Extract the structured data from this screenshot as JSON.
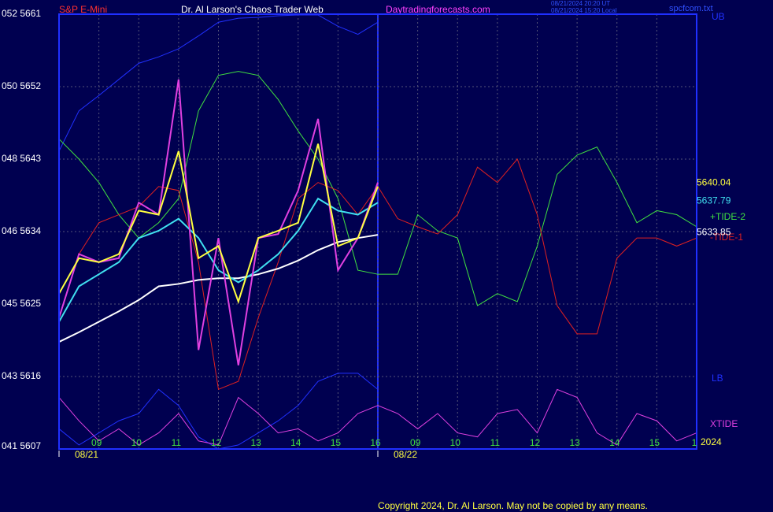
{
  "chart_data": {
    "type": "line",
    "title": "Dr. Al Larson's Chaos Trader Web",
    "instrument": "S&P E-Mini",
    "website": "Daytradingforecasts.com",
    "timestamps": [
      "08/21/2024 20:20 UT",
      "08/21/2024 15:20 Local"
    ],
    "file": "spcfcom.txt",
    "copyright": "Copyright 2024, Dr. Al Larson. May not be copied by any means.",
    "year": "2024",
    "dates": [
      "08/21",
      "08/22"
    ],
    "xlim": [
      0,
      16
    ],
    "xticks": [
      {
        "value": 1,
        "label": "09"
      },
      {
        "value": 2,
        "label": "10"
      },
      {
        "value": 3,
        "label": "11"
      },
      {
        "value": 4,
        "label": "12"
      },
      {
        "value": 5,
        "label": "13"
      },
      {
        "value": 6,
        "label": "14"
      },
      {
        "value": 7,
        "label": "15"
      },
      {
        "value": 8,
        "label": "16"
      },
      {
        "value": 9,
        "label": "09"
      },
      {
        "value": 10,
        "label": "10"
      },
      {
        "value": 11,
        "label": "11"
      },
      {
        "value": 12,
        "label": "12"
      },
      {
        "value": 13,
        "label": "13"
      },
      {
        "value": 14,
        "label": "14"
      },
      {
        "value": 15,
        "label": "15"
      },
      {
        "value": 16,
        "label": "1"
      }
    ],
    "ylim": [
      5607,
      5661
    ],
    "yticks": [
      {
        "value": 5661,
        "label": "052 5661"
      },
      {
        "value": 5652,
        "label": "050 5652"
      },
      {
        "value": 5643,
        "label": "048 5643"
      },
      {
        "value": 5634,
        "label": "046 5634"
      },
      {
        "value": 5625,
        "label": "045 5625"
      },
      {
        "value": 5616,
        "label": "043 5616"
      },
      {
        "value": 5607,
        "label": "041 5607"
      }
    ],
    "grid": true,
    "x": [
      0,
      0.5,
      1,
      1.5,
      2,
      2.5,
      3,
      3.5,
      4,
      4.5,
      5,
      5.5,
      6,
      6.5,
      7,
      7.5,
      8,
      8.5,
      9,
      9.5,
      10,
      10.5,
      11,
      11.5,
      12,
      12.5,
      13,
      13.5,
      14,
      14.5,
      15,
      15.5,
      16
    ],
    "series": [
      {
        "name": "UB",
        "color": "#2030ff",
        "values": [
          5644.0,
          5649.0,
          5650.9,
          5652.9,
          5654.9,
          5655.7,
          5656.7,
          5658.3,
          5660.0,
          5660.5,
          5660.6,
          5660.8,
          5660.9,
          5660.9,
          5659.5,
          5658.5,
          5660.0,
          null,
          null,
          null,
          null,
          null,
          null,
          null,
          null,
          null,
          null,
          null,
          null,
          null,
          null,
          null,
          null
        ]
      },
      {
        "name": "LB",
        "color": "#2030ff",
        "values": [
          5609.5,
          5607.5,
          5609.0,
          5610.5,
          5611.4,
          5614.4,
          5612.4,
          5608.5,
          5607.0,
          5607.5,
          5609.0,
          5610.5,
          5612.4,
          5615.4,
          5616.4,
          5616.4,
          5614.4,
          null,
          null,
          null,
          null,
          null,
          null,
          null,
          null,
          null,
          null,
          null,
          null,
          null,
          null,
          null,
          null
        ]
      },
      {
        "name": "+TIDE-2",
        "color": "#40e040",
        "values": [
          5645.5,
          5643.0,
          5640.1,
          5636.1,
          5633.2,
          5635.1,
          5638.1,
          5649.0,
          5653.4,
          5653.9,
          5653.4,
          5650.4,
          5646.5,
          5643.0,
          5638.1,
          5629.2,
          5628.7,
          5628.7,
          5636.1,
          5634.1,
          5633.2,
          5624.8,
          5626.3,
          5625.3,
          5632.2,
          5641.1,
          5643.5,
          5644.5,
          5640.1,
          5635.1,
          5636.6,
          5636.1,
          5634.6
        ]
      },
      {
        "name": "-TIDE-1",
        "color": "#e02020",
        "values": [
          5623.3,
          5631.2,
          5635.1,
          5636.1,
          5637.1,
          5639.6,
          5639.1,
          5630.2,
          5614.4,
          5615.4,
          5623.3,
          5630.2,
          5638.1,
          5640.1,
          5639.1,
          5636.1,
          5639.6,
          5635.6,
          5634.6,
          5633.7,
          5636.1,
          5642.0,
          5640.1,
          5643.0,
          5636.1,
          5624.8,
          5621.3,
          5621.3,
          5630.7,
          5633.2,
          5633.2,
          5632.2,
          5633.2
        ]
      },
      {
        "name": "XTIDE",
        "color": "#e040e0",
        "values": [
          5613.4,
          5610.5,
          5608.0,
          5609.5,
          5607.5,
          5609.0,
          5611.4,
          5608.0,
          5607.5,
          5613.4,
          5611.4,
          5609.0,
          5609.5,
          5608.0,
          5609.0,
          5611.4,
          5612.4,
          5611.4,
          5609.5,
          5611.4,
          5609.0,
          5608.5,
          5611.4,
          5611.9,
          5609.0,
          5614.4,
          5613.4,
          5609.0,
          5607.5,
          5611.4,
          5610.5,
          5608.0,
          5609.0
        ]
      },
      {
        "color": "#ffffff",
        "last_value": 5633.85,
        "values": [
          5620.3,
          5621.5,
          5622.8,
          5624.1,
          5625.5,
          5627.2,
          5627.5,
          5628.0,
          5628.2,
          5628.2,
          5628.7,
          5629.4,
          5630.4,
          5631.7,
          5632.7,
          5633.2,
          5633.6,
          null,
          null,
          null,
          null,
          null,
          null,
          null,
          null,
          null,
          null,
          null,
          null,
          null,
          null,
          null,
          null
        ]
      },
      {
        "color": "#40e0f0",
        "last_value": 5637.79,
        "values": [
          5622.8,
          5627.2,
          5628.7,
          5630.2,
          5633.2,
          5634.1,
          5635.6,
          5633.2,
          5629.2,
          5627.7,
          5629.2,
          5631.2,
          5634.1,
          5638.1,
          5636.6,
          5636.1,
          5637.6,
          null,
          null,
          null,
          null,
          null,
          null,
          null,
          null,
          null,
          null,
          null,
          null,
          null,
          null,
          null,
          null
        ]
      },
      {
        "color": "#e040e0",
        "values": [
          5623.3,
          5631.2,
          5630.2,
          5630.7,
          5637.6,
          5636.1,
          5652.9,
          5619.3,
          5633.2,
          5617.4,
          5633.2,
          5633.7,
          5639.1,
          5648.0,
          5629.2,
          5633.2,
          5640.1,
          null,
          null,
          null,
          null,
          null,
          null,
          null,
          null,
          null,
          null,
          null,
          null,
          null,
          null,
          null,
          null
        ]
      },
      {
        "color": "#ffff40",
        "last_value": 5640.04,
        "values": [
          5626.3,
          5630.7,
          5630.2,
          5631.2,
          5636.6,
          5636.1,
          5644.0,
          5630.7,
          5632.2,
          5625.3,
          5633.2,
          5634.1,
          5635.1,
          5644.9,
          5632.2,
          5633.2,
          5639.6,
          null,
          null,
          null,
          null,
          null,
          null,
          null,
          null,
          null,
          null,
          null,
          null,
          null,
          null,
          null,
          null
        ]
      }
    ]
  }
}
